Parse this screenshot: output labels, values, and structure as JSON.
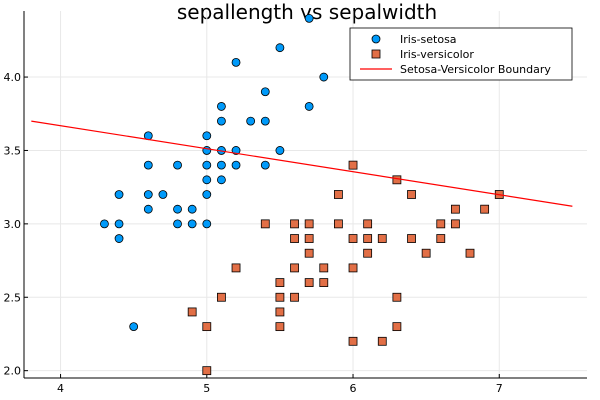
{
  "chart_data": {
    "type": "scatter",
    "title": "sepallength vs sepalwidth",
    "xlabel": "",
    "ylabel": "",
    "xlim": [
      3.75,
      7.6
    ],
    "ylim": [
      1.95,
      4.45
    ],
    "xticks": [
      4,
      5,
      6,
      7
    ],
    "xtick_labels": [
      "4",
      "5",
      "6",
      "7"
    ],
    "yticks": [
      2.0,
      2.5,
      3.0,
      3.5,
      4.0
    ],
    "ytick_labels": [
      "2.0",
      "2.5",
      "3.0",
      "3.5",
      "4.0"
    ],
    "grid": true,
    "legend": "top-right",
    "series": [
      {
        "name": "Iris-setosa",
        "marker": "circle",
        "color": "#009AFA",
        "points": [
          [
            4.3,
            3.0
          ],
          [
            4.4,
            2.9
          ],
          [
            4.4,
            3.0
          ],
          [
            4.4,
            3.2
          ],
          [
            4.5,
            2.3
          ],
          [
            4.6,
            3.1
          ],
          [
            4.6,
            3.2
          ],
          [
            4.6,
            3.4
          ],
          [
            4.6,
            3.6
          ],
          [
            4.7,
            3.2
          ],
          [
            4.8,
            3.0
          ],
          [
            4.8,
            3.1
          ],
          [
            4.8,
            3.4
          ],
          [
            4.9,
            3.0
          ],
          [
            4.9,
            3.1
          ],
          [
            5.0,
            3.0
          ],
          [
            5.0,
            3.2
          ],
          [
            5.0,
            3.3
          ],
          [
            5.0,
            3.4
          ],
          [
            5.0,
            3.5
          ],
          [
            5.0,
            3.6
          ],
          [
            5.1,
            3.3
          ],
          [
            5.1,
            3.4
          ],
          [
            5.1,
            3.5
          ],
          [
            5.1,
            3.7
          ],
          [
            5.1,
            3.8
          ],
          [
            5.2,
            3.4
          ],
          [
            5.2,
            3.5
          ],
          [
            5.2,
            4.1
          ],
          [
            5.3,
            3.7
          ],
          [
            5.4,
            3.4
          ],
          [
            5.4,
            3.7
          ],
          [
            5.4,
            3.9
          ],
          [
            5.5,
            3.5
          ],
          [
            5.5,
            4.2
          ],
          [
            5.7,
            3.8
          ],
          [
            5.7,
            4.4
          ],
          [
            5.8,
            4.0
          ]
        ]
      },
      {
        "name": "Iris-versicolor",
        "marker": "square",
        "color": "#E26F46",
        "points": [
          [
            4.9,
            2.4
          ],
          [
            5.0,
            2.0
          ],
          [
            5.0,
            2.3
          ],
          [
            5.1,
            2.5
          ],
          [
            5.2,
            2.7
          ],
          [
            5.4,
            3.0
          ],
          [
            5.5,
            2.3
          ],
          [
            5.5,
            2.4
          ],
          [
            5.5,
            2.5
          ],
          [
            5.5,
            2.6
          ],
          [
            5.6,
            2.5
          ],
          [
            5.6,
            2.7
          ],
          [
            5.6,
            2.9
          ],
          [
            5.6,
            3.0
          ],
          [
            5.7,
            2.6
          ],
          [
            5.7,
            2.8
          ],
          [
            5.7,
            2.9
          ],
          [
            5.7,
            3.0
          ],
          [
            5.8,
            2.6
          ],
          [
            5.8,
            2.7
          ],
          [
            5.9,
            3.0
          ],
          [
            5.9,
            3.2
          ],
          [
            6.0,
            2.2
          ],
          [
            6.0,
            2.7
          ],
          [
            6.0,
            2.9
          ],
          [
            6.0,
            3.4
          ],
          [
            6.1,
            2.8
          ],
          [
            6.1,
            2.9
          ],
          [
            6.1,
            3.0
          ],
          [
            6.2,
            2.2
          ],
          [
            6.2,
            2.9
          ],
          [
            6.3,
            2.3
          ],
          [
            6.3,
            2.5
          ],
          [
            6.3,
            3.3
          ],
          [
            6.4,
            2.9
          ],
          [
            6.4,
            3.2
          ],
          [
            6.5,
            2.8
          ],
          [
            6.6,
            2.9
          ],
          [
            6.6,
            3.0
          ],
          [
            6.7,
            3.0
          ],
          [
            6.7,
            3.1
          ],
          [
            6.8,
            2.8
          ],
          [
            6.9,
            3.1
          ],
          [
            7.0,
            3.2
          ]
        ]
      },
      {
        "name": "Setosa-Versicolor Boundary",
        "marker": "line",
        "color": "#FF0000",
        "points": [
          [
            3.8,
            3.7
          ],
          [
            7.5,
            3.12
          ]
        ]
      }
    ]
  }
}
